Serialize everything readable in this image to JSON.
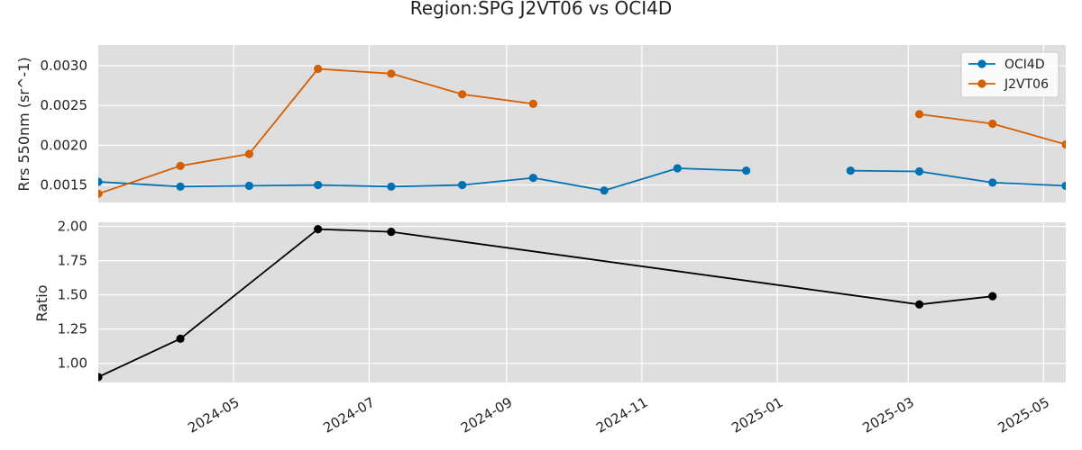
{
  "chart_data": [
    {
      "type": "line",
      "title": "Region:SPG J2VT06 vs OCI4D",
      "ylabel": "Rrs 550nm (sr^-1)",
      "xlim": [
        "2024-03-01",
        "2025-05-11"
      ],
      "ylim": [
        0.00128,
        0.00326
      ],
      "yticks": [
        0.0015,
        0.002,
        0.0025,
        0.003
      ],
      "ytick_labels": [
        "0.0015",
        "0.0020",
        "0.0025",
        "0.0030"
      ],
      "grid": true,
      "legend": "top-right",
      "series": [
        {
          "name": "OCI4D",
          "color": "#0072B2",
          "points": [
            [
              "2024-03-01",
              0.00154
            ],
            [
              "2024-04-07",
              0.00148
            ],
            [
              "2024-05-08",
              0.00149
            ],
            [
              "2024-06-08",
              0.0015
            ],
            [
              "2024-07-11",
              0.00148
            ],
            [
              "2024-08-12",
              0.0015
            ],
            [
              "2024-09-13",
              0.00159
            ],
            [
              "2024-10-15",
              0.00143
            ],
            [
              "2024-11-17",
              0.00171
            ],
            [
              "2024-12-18",
              0.00168
            ],
            null,
            [
              "2025-02-03",
              0.00168
            ],
            [
              "2025-03-06",
              0.00167
            ],
            [
              "2025-04-08",
              0.00153
            ],
            [
              "2025-05-11",
              0.00149
            ]
          ]
        },
        {
          "name": "J2VT06",
          "color": "#D55E00",
          "points": [
            [
              "2024-03-01",
              0.00139
            ],
            [
              "2024-04-07",
              0.00174
            ],
            [
              "2024-05-08",
              0.00189
            ],
            [
              "2024-06-08",
              0.00296
            ],
            [
              "2024-07-11",
              0.0029
            ],
            [
              "2024-08-12",
              0.00264
            ],
            [
              "2024-09-13",
              0.00252
            ],
            null,
            [
              "2025-03-06",
              0.00239
            ],
            [
              "2025-04-08",
              0.00227
            ],
            [
              "2025-05-11",
              0.00201
            ]
          ]
        }
      ]
    },
    {
      "type": "line",
      "ylabel": "Ratio",
      "xlim": [
        "2024-03-01",
        "2025-05-11"
      ],
      "ylim": [
        0.86,
        2.03
      ],
      "yticks": [
        1.0,
        1.25,
        1.5,
        1.75,
        2.0
      ],
      "ytick_labels": [
        "1.00",
        "1.25",
        "1.50",
        "1.75",
        "2.00"
      ],
      "xticks": [
        "2024-05-01",
        "2024-07-01",
        "2024-09-01",
        "2024-11-01",
        "2025-01-01",
        "2025-03-01",
        "2025-05-01"
      ],
      "xtick_labels": [
        "2024-05",
        "2024-07",
        "2024-09",
        "2024-11",
        "2025-01",
        "2025-03",
        "2025-05"
      ],
      "grid": true,
      "series": [
        {
          "color": "#000000",
          "points": [
            [
              "2024-03-01",
              0.9
            ],
            [
              "2024-04-07",
              1.18
            ],
            [
              "2024-06-08",
              1.98
            ],
            [
              "2024-07-11",
              1.96
            ],
            [
              "2025-03-06",
              1.43
            ],
            [
              "2025-04-08",
              1.49
            ]
          ]
        }
      ]
    }
  ]
}
